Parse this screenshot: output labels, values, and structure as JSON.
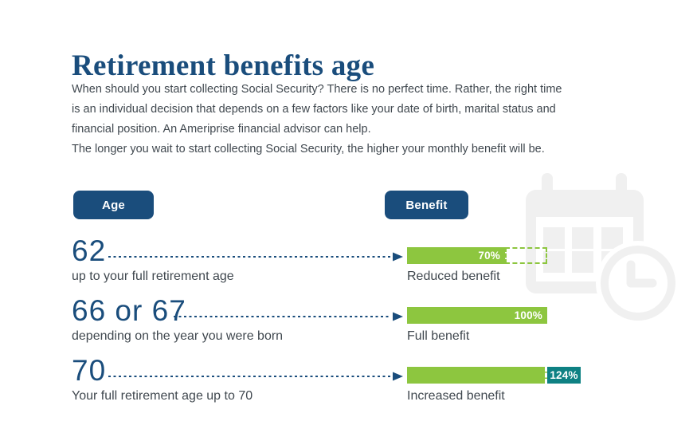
{
  "header": {
    "title": "Retirement benefits age",
    "intro": "When should you start collecting Social Security? There is no perfect time. Rather, the right time is an individual decision that depends on a few factors like your date of birth, marital status and financial position. An Ameriprise financial advisor can help.",
    "note": "The longer you wait to start collecting Social Security, the higher your monthly benefit will be."
  },
  "columns": {
    "age_header": "Age",
    "benefit_header": "Benefit"
  },
  "rows": [
    {
      "age": "62",
      "age_caption": "up to your full retirement age",
      "percent_label": "70%",
      "benefit_caption": "Reduced benefit"
    },
    {
      "age": "66 or 67",
      "age_caption": "depending on the year you were born",
      "percent_label": "100%",
      "benefit_caption": "Full benefit"
    },
    {
      "age": "70",
      "age_caption": "Your full retirement age up to 70",
      "percent_label": "124%",
      "benefit_caption": "Increased benefit"
    }
  ],
  "chart_data": {
    "type": "bar",
    "orientation": "horizontal",
    "title": "Retirement benefits age",
    "categories": [
      "62",
      "66 or 67",
      "70"
    ],
    "category_captions": [
      "up to your full retirement age",
      "depending on the year you were born",
      "Your full retirement age up to 70"
    ],
    "values": [
      70,
      100,
      124
    ],
    "unit": "%",
    "value_labels": [
      "70%",
      "100%",
      "124%"
    ],
    "bar_captions": [
      "Reduced benefit",
      "Full benefit",
      "Increased benefit"
    ],
    "reference_value": 100,
    "xlim": [
      0,
      124
    ],
    "grid": false,
    "legend": false
  },
  "colors": {
    "navy": "#1a4d7c",
    "green": "#8dc63f",
    "teal": "#0e8183",
    "body_text": "#40484f",
    "icon_gray": "#f0f0f0"
  }
}
